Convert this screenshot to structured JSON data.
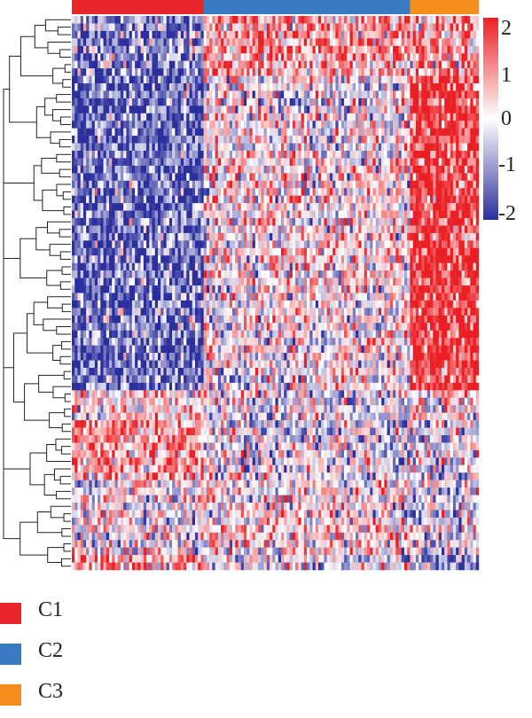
{
  "chart_data": {
    "type": "heatmap",
    "title": "",
    "column_groups": [
      {
        "name": "C1",
        "color": "#e8262c",
        "count": 46
      },
      {
        "name": "C2",
        "color": "#3a7cc4",
        "count": 72
      },
      {
        "name": "C3",
        "color": "#f68e1e",
        "count": 24
      }
    ],
    "row_blocks": [
      {
        "rows": 8,
        "means": [
          -1.2,
          0.9,
          0.8
        ]
      },
      {
        "rows": 10,
        "means": [
          -1.5,
          0.0,
          1.9
        ]
      },
      {
        "rows": 8,
        "means": [
          -1.4,
          0.2,
          1.9
        ]
      },
      {
        "rows": 10,
        "means": [
          -1.3,
          0.2,
          1.9
        ]
      },
      {
        "rows": 8,
        "means": [
          -1.3,
          0.1,
          1.8
        ]
      },
      {
        "rows": 6,
        "means": [
          -1.4,
          0.1,
          1.8
        ]
      },
      {
        "rows": 4,
        "means": [
          0.2,
          -0.2,
          0.2
        ]
      },
      {
        "rows": 8,
        "means": [
          0.9,
          -0.2,
          -0.3
        ]
      },
      {
        "rows": 10,
        "means": [
          0.0,
          0.2,
          -0.2
        ]
      },
      {
        "rows": 2,
        "means": [
          1.0,
          -0.3,
          -0.8
        ]
      }
    ],
    "color_scale": {
      "min": -2,
      "max": 2,
      "colors": [
        "#2b2f9c",
        "#ffffff",
        "#ea1f24"
      ],
      "ticks": [
        "2",
        "1",
        "0",
        "-1",
        "-2"
      ]
    },
    "legend": {
      "placement": "bottom-left",
      "entries": [
        "C1",
        "C2",
        "C3"
      ]
    }
  }
}
